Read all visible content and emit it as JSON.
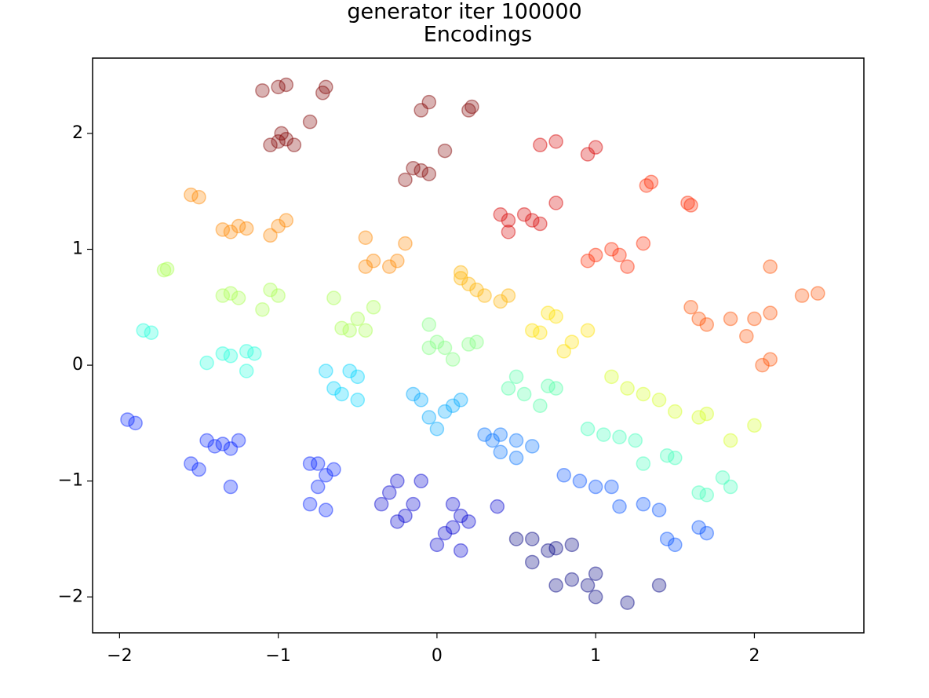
{
  "chart_data": {
    "type": "scatter",
    "suptitle": "generator iter 100000",
    "title": "Encodings",
    "xlim": [
      -2.17,
      2.69
    ],
    "ylim": [
      -2.31,
      2.65
    ],
    "xticks": [
      {
        "value": -2,
        "label": "−2"
      },
      {
        "value": -1,
        "label": "−1"
      },
      0,
      1,
      2
    ],
    "yticks": [
      {
        "value": -2,
        "label": "−2"
      },
      {
        "value": -1,
        "label": "−1"
      },
      0,
      1,
      2
    ],
    "series": [
      {
        "color": "#800000",
        "x": [
          -1.0,
          -1.05,
          -0.95,
          -0.9,
          -0.98,
          -0.8,
          -0.7,
          -0.72,
          -1.1,
          -1.0,
          -0.95,
          -0.15,
          -0.1,
          -0.05,
          -0.2,
          -0.1,
          -0.05,
          0.05,
          0.2,
          0.22
        ],
        "y": [
          1.93,
          1.9,
          1.95,
          1.9,
          2.0,
          2.1,
          2.4,
          2.35,
          2.37,
          2.4,
          2.42,
          1.7,
          1.68,
          1.65,
          1.6,
          2.2,
          2.27,
          1.85,
          2.2,
          2.23
        ]
      },
      {
        "color": "#d80000",
        "x": [
          0.45,
          0.55,
          0.6,
          0.65,
          0.45,
          0.4,
          0.75,
          0.65,
          0.75,
          1.0,
          0.95
        ],
        "y": [
          1.25,
          1.3,
          1.25,
          1.22,
          1.15,
          1.3,
          1.4,
          1.9,
          1.93,
          1.88,
          1.82
        ]
      },
      {
        "color": "#ff2800",
        "x": [
          1.0,
          0.95,
          1.1,
          1.15,
          1.3,
          1.2,
          1.35,
          1.32,
          1.6,
          1.58
        ],
        "y": [
          0.95,
          0.9,
          1.0,
          0.95,
          1.05,
          0.85,
          1.58,
          1.55,
          1.38,
          1.4
        ]
      },
      {
        "color": "#ff5000",
        "x": [
          1.6,
          1.65,
          1.7,
          1.85,
          1.95,
          2.0,
          2.1,
          2.3,
          2.4,
          2.1,
          2.05,
          2.1
        ],
        "y": [
          0.5,
          0.4,
          0.35,
          0.4,
          0.25,
          0.4,
          0.45,
          0.6,
          0.62,
          0.85,
          0.0,
          0.05
        ]
      },
      {
        "color": "#ff8800",
        "x": [
          -1.35,
          -1.3,
          -1.25,
          -1.2,
          -1.05,
          -1.0,
          -0.95,
          -1.5,
          -1.55,
          -0.45,
          -0.4,
          -0.45,
          -0.25,
          -0.2,
          -0.3
        ],
        "y": [
          1.17,
          1.15,
          1.2,
          1.18,
          1.12,
          1.2,
          1.25,
          1.45,
          1.47,
          1.1,
          0.9,
          0.85,
          0.9,
          1.05,
          0.85
        ]
      },
      {
        "color": "#ffb400",
        "x": [
          0.15,
          0.2,
          0.25,
          0.3,
          0.4,
          0.45,
          0.15
        ],
        "y": [
          0.75,
          0.7,
          0.65,
          0.6,
          0.55,
          0.6,
          0.8
        ]
      },
      {
        "color": "#ffe000",
        "x": [
          0.6,
          0.65,
          0.7,
          0.75,
          0.85,
          0.8,
          0.95
        ],
        "y": [
          0.3,
          0.28,
          0.45,
          0.42,
          0.2,
          0.12,
          0.3
        ]
      },
      {
        "color": "#d4ff22",
        "x": [
          1.1,
          1.2,
          1.3,
          1.4,
          1.5,
          1.7,
          1.65,
          2.0,
          1.85
        ],
        "y": [
          -0.1,
          -0.2,
          -0.25,
          -0.3,
          -0.4,
          -0.42,
          -0.45,
          -0.52,
          -0.65
        ]
      },
      {
        "color": "#a8ff4f",
        "x": [
          -1.35,
          -1.3,
          -1.25,
          -1.05,
          -1.0,
          -1.1,
          -1.7,
          -1.72,
          -0.65,
          -0.5,
          -0.55,
          -0.4,
          -0.45,
          -0.6
        ],
        "y": [
          0.6,
          0.62,
          0.58,
          0.65,
          0.6,
          0.48,
          0.83,
          0.82,
          0.58,
          0.4,
          0.3,
          0.5,
          0.3,
          0.32
        ]
      },
      {
        "color": "#80ff80",
        "x": [
          -0.05,
          0.0,
          0.05,
          0.1,
          0.2,
          0.25,
          -0.05
        ],
        "y": [
          0.35,
          0.2,
          0.15,
          0.05,
          0.18,
          0.2,
          0.15
        ]
      },
      {
        "color": "#50ffa6",
        "x": [
          0.5,
          0.55,
          0.45,
          0.65,
          0.75,
          0.7
        ],
        "y": [
          -0.1,
          -0.25,
          -0.2,
          -0.35,
          -0.2,
          -0.18
        ]
      },
      {
        "color": "#40ffba",
        "x": [
          0.95,
          1.05,
          1.15,
          1.25,
          1.3,
          1.45,
          1.5,
          1.65,
          1.7,
          1.8,
          1.85
        ],
        "y": [
          -0.55,
          -0.6,
          -0.62,
          -0.65,
          -0.85,
          -0.78,
          -0.8,
          -1.1,
          -1.12,
          -0.97,
          -1.05
        ]
      },
      {
        "color": "#22ffdc",
        "x": [
          -1.45,
          -1.35,
          -1.3,
          -1.2,
          -1.15,
          -1.2,
          -1.8,
          -1.85
        ],
        "y": [
          0.02,
          0.1,
          0.08,
          0.12,
          0.1,
          -0.05,
          0.28,
          0.3
        ]
      },
      {
        "color": "#00d4ff",
        "x": [
          -0.7,
          -0.65,
          -0.6,
          -0.5,
          -0.55,
          -0.5
        ],
        "y": [
          -0.05,
          -0.2,
          -0.25,
          -0.1,
          -0.05,
          -0.3
        ]
      },
      {
        "color": "#00a8ff",
        "x": [
          -0.15,
          -0.1,
          -0.05,
          0.0,
          0.1,
          0.15,
          0.05
        ],
        "y": [
          -0.25,
          -0.3,
          -0.45,
          -0.55,
          -0.35,
          -0.3,
          -0.4
        ]
      },
      {
        "color": "#0070ff",
        "x": [
          0.3,
          0.35,
          0.4,
          0.5,
          0.5,
          0.6,
          0.4
        ],
        "y": [
          -0.6,
          -0.65,
          -0.6,
          -0.65,
          -0.8,
          -0.7,
          -0.75
        ]
      },
      {
        "color": "#0050ff",
        "x": [
          0.8,
          0.9,
          1.0,
          1.1,
          1.15,
          1.3,
          1.4,
          1.45,
          1.5,
          1.65,
          1.7
        ],
        "y": [
          -0.95,
          -1.0,
          -1.05,
          -1.05,
          -1.22,
          -1.2,
          -1.25,
          -1.5,
          -1.55,
          -1.4,
          -1.45
        ]
      },
      {
        "color": "#0020ff",
        "x": [
          -1.45,
          -1.4,
          -1.35,
          -1.5,
          -1.55,
          -1.3,
          -1.3,
          -1.25,
          -1.9,
          -1.95,
          -0.8,
          -0.75,
          -0.7,
          -0.75,
          -0.8,
          -0.65,
          -0.7
        ],
        "y": [
          -0.65,
          -0.7,
          -0.68,
          -0.9,
          -0.85,
          -0.72,
          -1.05,
          -0.65,
          -0.5,
          -0.47,
          -0.85,
          -0.85,
          -0.95,
          -1.05,
          -1.2,
          -0.9,
          -1.25
        ]
      },
      {
        "color": "#0000d0",
        "x": [
          -0.35,
          -0.3,
          -0.25,
          -0.25,
          -0.2,
          -0.1,
          -0.15,
          0.05,
          0.1,
          0.15,
          0.2,
          0.15,
          0.0,
          0.1,
          0.38
        ],
        "y": [
          -1.2,
          -1.1,
          -1.0,
          -1.35,
          -1.3,
          -1.0,
          -1.2,
          -1.45,
          -1.4,
          -1.3,
          -1.35,
          -1.6,
          -1.55,
          -1.2,
          -1.22
        ]
      },
      {
        "color": "#000080",
        "x": [
          0.5,
          0.6,
          0.7,
          0.75,
          0.85,
          0.6,
          0.75,
          0.85,
          0.95,
          1.0,
          1.0,
          1.2,
          1.4
        ],
        "y": [
          -1.5,
          -1.5,
          -1.6,
          -1.58,
          -1.55,
          -1.7,
          -1.9,
          -1.85,
          -1.9,
          -1.8,
          -2.0,
          -2.05,
          -1.9
        ]
      }
    ]
  }
}
